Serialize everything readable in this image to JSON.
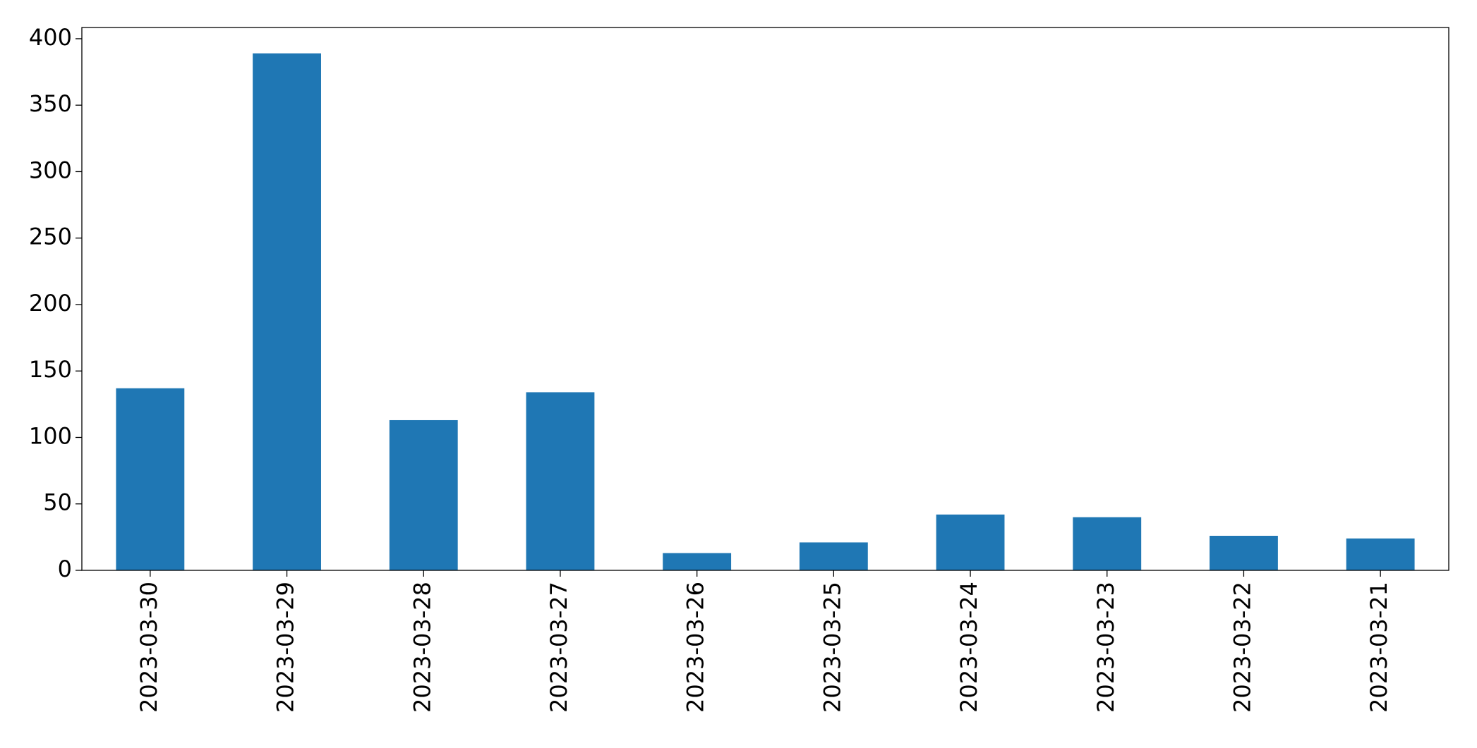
{
  "chart_data": {
    "type": "bar",
    "categories": [
      "2023-03-30",
      "2023-03-29",
      "2023-03-28",
      "2023-03-27",
      "2023-03-26",
      "2023-03-25",
      "2023-03-24",
      "2023-03-23",
      "2023-03-22",
      "2023-03-21"
    ],
    "values": [
      137,
      389,
      113,
      134,
      13,
      21,
      42,
      40,
      26,
      24
    ],
    "color": "#1f77b4",
    "ylim": [
      0,
      408.45
    ],
    "yticks": [
      0,
      50,
      100,
      150,
      200,
      250,
      300,
      350,
      400
    ],
    "grid": false
  }
}
